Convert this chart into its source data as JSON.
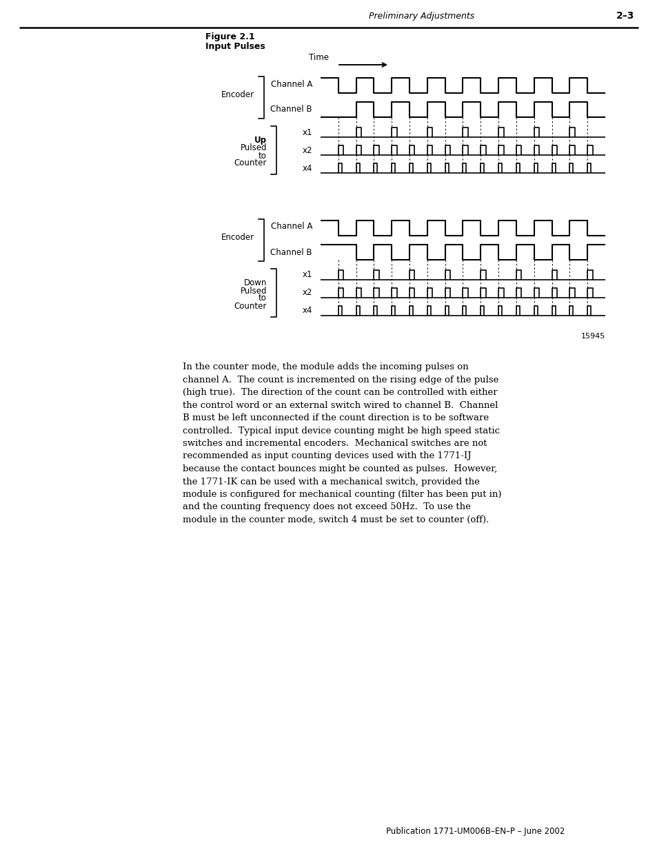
{
  "title_line1": "Figure 2.1",
  "title_line2": "Input Pulses",
  "header_text": "Preliminary Adjustments",
  "page_num": "2–3",
  "time_label": "Time",
  "figure_num": "15945",
  "footer_text": "Publication 1771-UM006B–EN–P – June 2002",
  "body_text": [
    "In the counter mode, the module adds the incoming pulses on",
    "channel A.  The count is incremented on the rising edge of the pulse",
    "(high true).  The direction of the count can be controlled with either",
    "the control word or an external switch wired to channel B.  Channel",
    "B must be left unconnected if the count direction is to be software",
    "controlled.  Typical input device counting might be high speed static",
    "switches and incremental encoders.  Mechanical switches are not",
    "recommended as input counting devices used with the 1771-IJ",
    "because the contact bounces might be counted as pulses.  However,",
    "the 1771-IK can be used with a mechanical switch, provided the",
    "module is configured for mechanical counting (filter has been put in)",
    "and the counting frequency does not exceed 50Hz.  To use the",
    "module in the counter mode, switch 4 must be set to counter (off)."
  ],
  "bg_color": "#ffffff",
  "line_color": "#000000",
  "text_color": "#000000"
}
